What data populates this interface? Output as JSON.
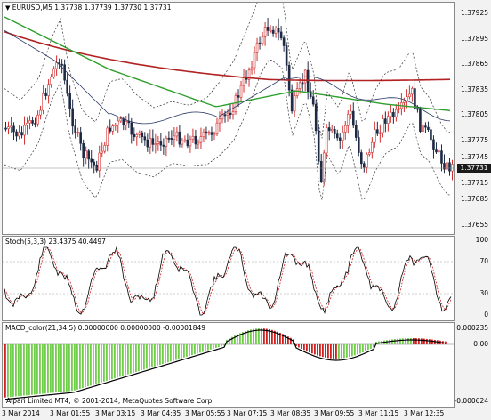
{
  "chart": {
    "symbol_label": "EURUSD,M5",
    "ohlc": "1.37738 1.37739 1.37730 1.37731",
    "price_axis": [
      "1.37925",
      "1.37895",
      "1.37865",
      "1.37835",
      "1.37805",
      "1.37775",
      "1.37745",
      "1.37715",
      "1.37685",
      "1.37655"
    ],
    "current_price": "1.37731"
  },
  "stoch": {
    "label": "Stoch(5,3,3) 23.4375 40.4497",
    "axis": [
      "100",
      "70",
      "30",
      "0"
    ]
  },
  "macd": {
    "label": "MACD_color(21,34,5) 0.00000000 0.00000000 -0.00001849",
    "axis": [
      "0.000235",
      "0.00",
      "-0.000624"
    ],
    "copyright": "Alpari Limited MT4, © 2001-2014, MetaQuotes Software Corp."
  },
  "time_axis": [
    "3 Mar 2014",
    "3 Mar 01:55",
    "3 Mar 03:15",
    "3 Mar 04:35",
    "3 Mar 05:55",
    "3 Mar 07:15",
    "3 Mar 08:35",
    "3 Mar 09:55",
    "3 Mar 11:15",
    "3 Mar 12:35"
  ],
  "colors": {
    "bull": "#d23030",
    "bear": "#1e2a44",
    "ma_slow": "#b22222",
    "ma_fast": "#2ea02e",
    "ma_thin": "#2a3a66",
    "stoch_main": "#000000",
    "stoch_signal": "#d22020",
    "macd_up": "#6fcf4a",
    "macd_down": "#d02020"
  }
}
